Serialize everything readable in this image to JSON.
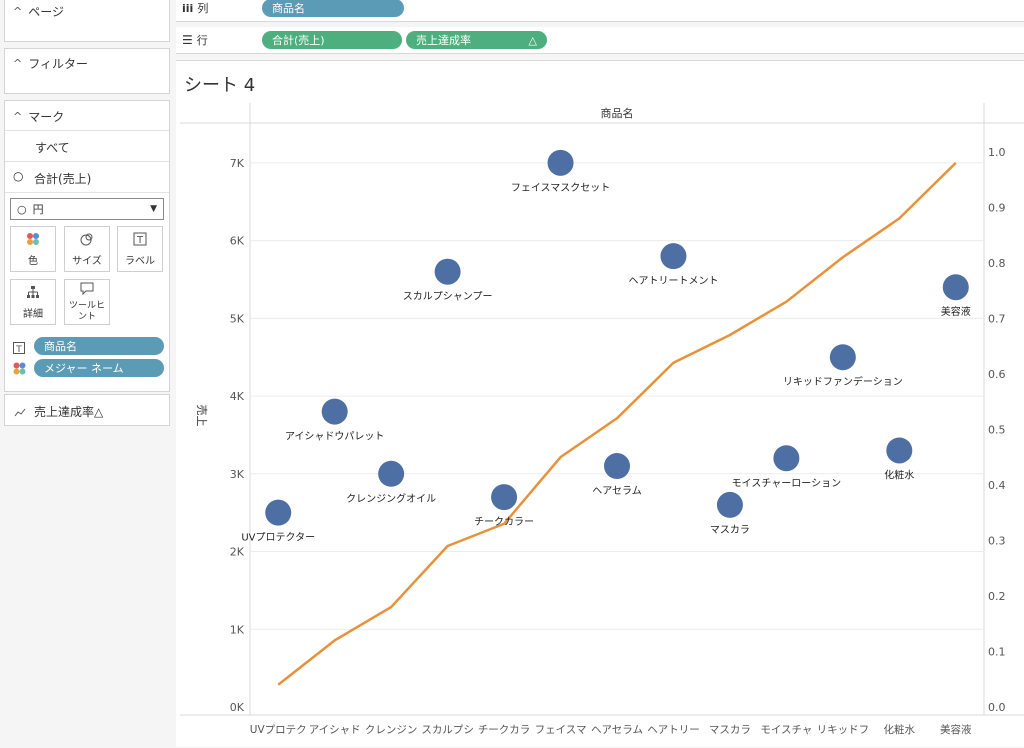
{
  "left_panel": {
    "pages_title": "ページ",
    "filters_title": "フィルター",
    "marks_title": "マーク",
    "marks_all": "すべて",
    "marks_sum_sales": "合計(売上)",
    "mark_type": "円",
    "buttons": {
      "color": "色",
      "size": "サイズ",
      "label": "ラベル",
      "detail": "詳細",
      "tooltip": "ツールヒント"
    },
    "label_pill": "商品名",
    "color_pill": "メジャー ネーム",
    "line_card": "売上達成率△"
  },
  "shelves": {
    "columns_label": "列",
    "columns_pill": "商品名",
    "rows_label": "行",
    "rows_pill1": "合計(売上)",
    "rows_pill2": "売上達成率",
    "rows_pill2_icon": "△"
  },
  "sheet": {
    "title": "シート 4"
  },
  "chart_data": {
    "type": "scatter",
    "header": "商品名",
    "ylabel": "売上",
    "categories_full": [
      "UVプロテクター",
      "アイシャドウパレット",
      "クレンジングオイル",
      "スカルプシャンプー",
      "チークカラー",
      "フェイスマスクセット",
      "ヘアセラム",
      "ヘアトリートメント",
      "マスカラ",
      "モイスチャーローション",
      "リキッドファンデーション",
      "化粧水",
      "美容液"
    ],
    "axis_labels": [
      "UVプロテク",
      "アイシャド",
      "クレンジン",
      "スカルプシ",
      "チークカラ",
      "フェイスマ",
      "ヘアセラム",
      "ヘアトリー",
      "マスカラ",
      "モイスチャ",
      "リキッドフ",
      "化粧水",
      "美容液"
    ],
    "sales": [
      2500,
      3800,
      3000,
      5600,
      2700,
      7000,
      3100,
      5800,
      2600,
      3200,
      4500,
      3300,
      5400
    ],
    "achievement_rate": [
      0.04,
      0.12,
      0.18,
      0.29,
      0.33,
      0.45,
      0.52,
      0.62,
      0.67,
      0.73,
      0.81,
      0.88,
      0.98
    ],
    "ylim_left": [
      0,
      7500
    ],
    "yticks_left": [
      "0K",
      "1K",
      "2K",
      "3K",
      "4K",
      "5K",
      "6K",
      "7K"
    ],
    "ylim_right": [
      0,
      1.05
    ],
    "yticks_right": [
      "0.0",
      "0.1",
      "0.2",
      "0.3",
      "0.4",
      "0.5",
      "0.6",
      "0.7",
      "0.8",
      "0.9",
      "1.0"
    ],
    "colors": {
      "circle": "#4e6fa3",
      "line": "#e8913a",
      "grid": "#ececec"
    }
  }
}
